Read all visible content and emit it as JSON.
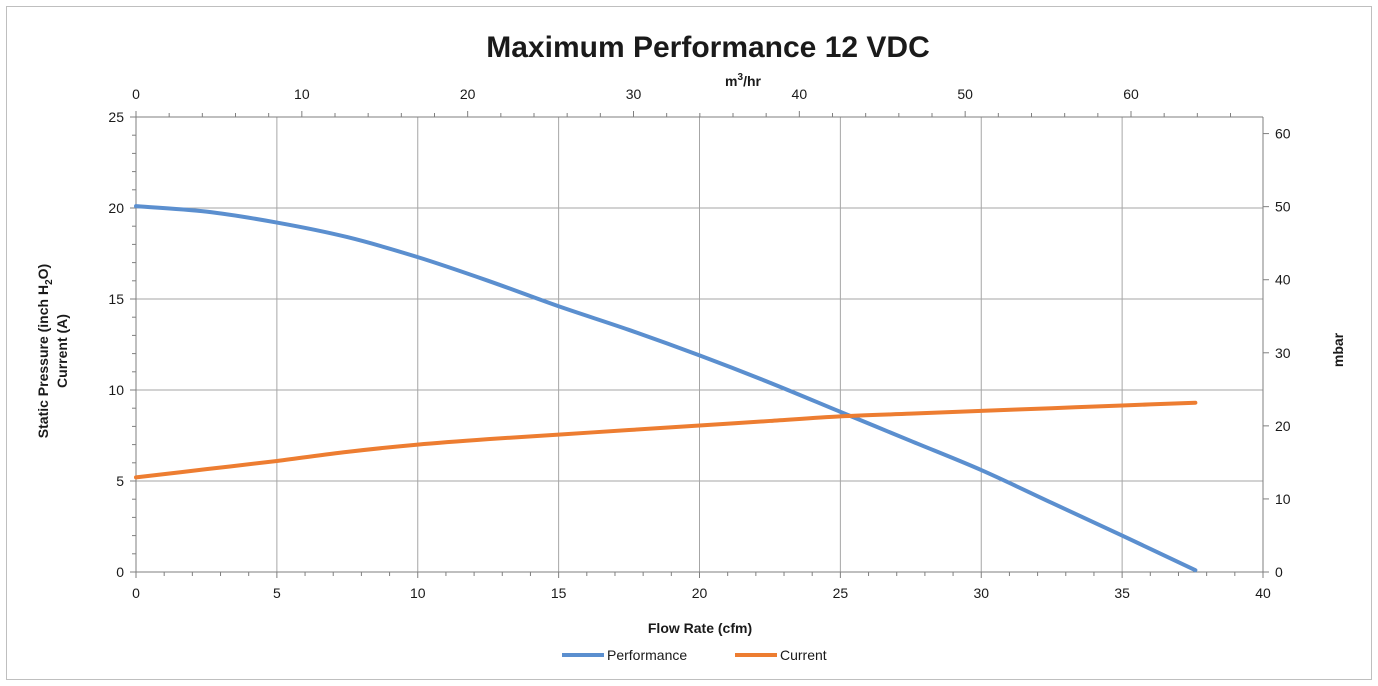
{
  "chart_data": {
    "type": "line",
    "title": "Maximum Performance 12 VDC",
    "xlabel": "Flow Rate (cfm)",
    "ylabel_line1_prefix": "Static Pressure (inch H",
    "ylabel_line1_sub": "2",
    "ylabel_line1_suffix": "O)",
    "ylabel_line2": "Current (A)",
    "x2label_prefix": "m",
    "x2label_sup": "3",
    "x2label_suffix": "/hr",
    "y2label": "mbar",
    "xlim": [
      0,
      40
    ],
    "ylim": [
      0,
      25
    ],
    "x2lim": [
      0,
      67.96
    ],
    "y2lim": [
      0,
      62.27
    ],
    "xticks": [
      "0",
      "5",
      "10",
      "15",
      "20",
      "25",
      "30",
      "35",
      "40"
    ],
    "yticks": [
      "0",
      "5",
      "10",
      "15",
      "20",
      "25"
    ],
    "x2ticks": [
      "0",
      "10",
      "20",
      "30",
      "40",
      "50",
      "60"
    ],
    "y2ticks": [
      "0",
      "10",
      "20",
      "30",
      "40",
      "50",
      "60"
    ],
    "grid": true,
    "legend_position": "bottom",
    "series": [
      {
        "name": "Performance",
        "color": "#5b8fcf",
        "x": [
          0,
          2.5,
          5,
          7.5,
          10,
          12.5,
          15,
          17.5,
          20,
          22.5,
          25,
          27.5,
          30,
          32.5,
          35,
          37.6
        ],
        "y": [
          20.1,
          19.8,
          19.2,
          18.4,
          17.3,
          16.0,
          14.6,
          13.3,
          11.9,
          10.4,
          8.8,
          7.2,
          5.6,
          3.8,
          2.0,
          0.1
        ]
      },
      {
        "name": "Current",
        "color": "#ed7d31",
        "x": [
          0,
          2.5,
          5,
          7.5,
          10,
          12.5,
          15,
          17.5,
          20,
          22.5,
          25,
          27.5,
          30,
          32.5,
          35,
          37.6
        ],
        "y": [
          5.2,
          5.65,
          6.1,
          6.6,
          7.0,
          7.3,
          7.55,
          7.8,
          8.05,
          8.3,
          8.55,
          8.7,
          8.85,
          9.0,
          9.15,
          9.3
        ]
      }
    ]
  }
}
